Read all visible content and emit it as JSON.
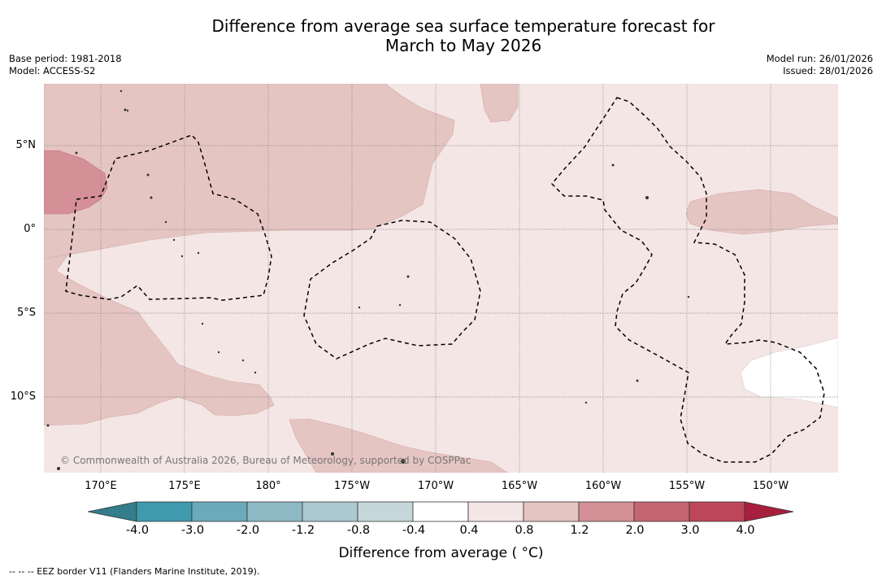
{
  "title": {
    "line1": "Difference from average sea surface temperature forecast for",
    "line2": "March to May 2026"
  },
  "meta": {
    "base_period": "Base period: 1981-2018",
    "model": "Model: ACCESS-S2",
    "model_run": "Model run: 26/01/2026",
    "issued": "Issued: 28/01/2026"
  },
  "map": {
    "copyright": "© Commonwealth of Australia 2026, Bureau of Meteorology, supported by COSPPac",
    "lat_labels": [
      "5°N",
      "0°",
      "5°S",
      "10°S"
    ],
    "lon_labels": [
      "170°E",
      "175°E",
      "180°",
      "175°W",
      "170°W",
      "165°W",
      "160°W",
      "155°W",
      "150°W"
    ]
  },
  "colorbar": {
    "ticks": [
      "-4.0",
      "-3.0",
      "-2.0",
      "-1.2",
      "-0.8",
      "-0.4",
      "0.4",
      "0.8",
      "1.2",
      "2.0",
      "3.0",
      "4.0"
    ],
    "bin_colors": [
      "#3f9aae",
      "#6aaabb",
      "#8db8c4",
      "#abc9cf",
      "#c7d6da",
      "#ffffff",
      "#f4e6e4",
      "#e5c5c2",
      "#d48f97",
      "#c66572",
      "#bd4658"
    ],
    "under_color": "#337d8c",
    "over_color": "#a81f3d",
    "label": "Difference from average ( °C)"
  },
  "footnote": "--  --  -- EEZ border V11 (Flanders Marine Institute, 2019)."
}
